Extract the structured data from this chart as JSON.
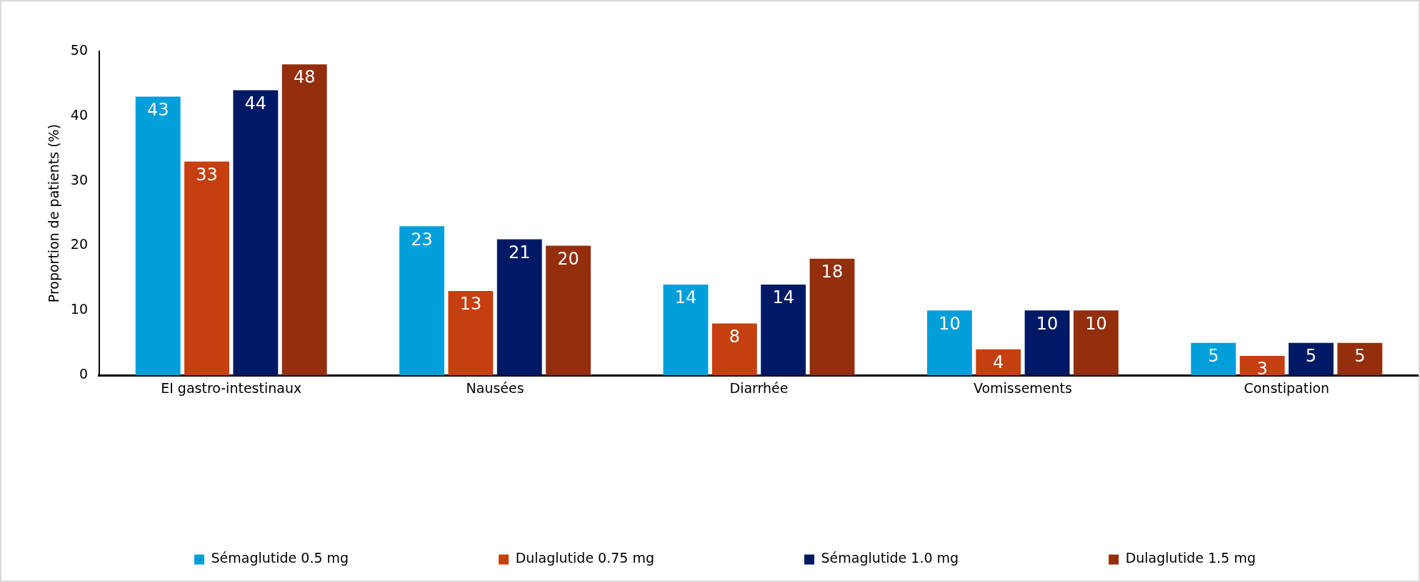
{
  "chart_data": {
    "type": "bar",
    "ylabel": "Proportion de patients (%)",
    "categories": [
      "EI gastro-intestinaux",
      "Nausées",
      "Diarrhée",
      "Vomissements",
      "Constipation"
    ],
    "series": [
      {
        "name": "Sémaglutide 0.5 mg",
        "color": "#009fda",
        "values": [
          43,
          23,
          14,
          10,
          5
        ]
      },
      {
        "name": "Dulaglutide 0.75 mg",
        "color": "#c63f10",
        "values": [
          33,
          13,
          8,
          4,
          3
        ]
      },
      {
        "name": "Sémaglutide 1.0 mg",
        "color": "#001965",
        "values": [
          44,
          21,
          14,
          10,
          5
        ]
      },
      {
        "name": "Dulaglutide 1.5 mg",
        "color": "#942e0c",
        "values": [
          48,
          20,
          18,
          10,
          5
        ]
      }
    ],
    "ylim": [
      0,
      50
    ],
    "yticks": [
      0,
      10,
      20,
      30,
      40,
      50
    ],
    "grid": false,
    "legend": "bottom",
    "data_labels": true
  }
}
